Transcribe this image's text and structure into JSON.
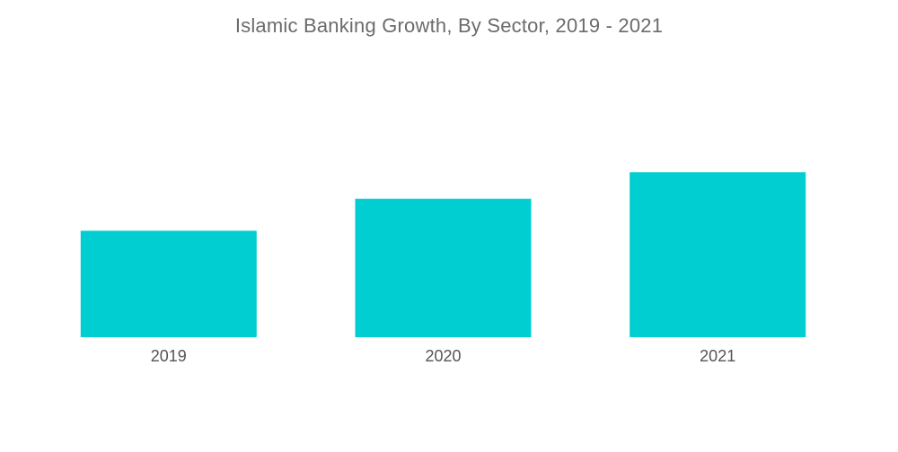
{
  "chart_data": {
    "type": "bar",
    "title": "Islamic Banking Growth, By Sector, 2019 - 2021",
    "categories": [
      "2019",
      "2020",
      "2021"
    ],
    "values": [
      1.0,
      1.3,
      1.55
    ],
    "xlabel": "",
    "ylabel": "",
    "ylim": [
      0,
      3.0
    ],
    "grid": false,
    "legend": "none",
    "bar_color": "#00CED1"
  }
}
